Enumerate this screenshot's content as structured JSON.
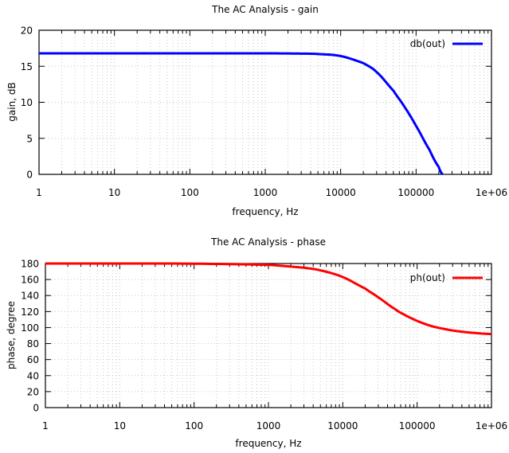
{
  "chart_data": [
    {
      "type": "line",
      "title": "The AC Analysis - gain",
      "xlabel": "frequency, Hz",
      "ylabel": "gain, dB",
      "xscale": "log",
      "xlim": [
        1,
        1000000
      ],
      "ylim": [
        0,
        20
      ],
      "xticks": [
        "1",
        "10",
        "100",
        "1000",
        "10000",
        "100000",
        "1e+06"
      ],
      "yticks": [
        "0",
        "5",
        "10",
        "15",
        "20"
      ],
      "ytick_values": [
        0,
        5,
        10,
        15,
        20
      ],
      "grid": true,
      "legend_position": "top-right",
      "series": [
        {
          "name": "db(out)",
          "color": "#0000ff",
          "x": [
            1,
            10,
            100,
            1000,
            3000,
            5000,
            10000,
            20000,
            30000,
            50000,
            70000,
            100000,
            150000,
            200000,
            225000
          ],
          "y": [
            16.8,
            16.8,
            16.8,
            16.8,
            16.76,
            16.7,
            16.42,
            15.44,
            14.19,
            11.62,
            9.4,
            6.72,
            3.44,
            1.03,
            0
          ]
        }
      ]
    },
    {
      "type": "line",
      "title": "The AC Analysis - phase",
      "xlabel": "frequency, Hz",
      "ylabel": "phase, degree",
      "xscale": "log",
      "xlim": [
        1,
        1000000
      ],
      "ylim": [
        0,
        180
      ],
      "xticks": [
        "1",
        "10",
        "100",
        "1000",
        "10000",
        "100000",
        "1e+06"
      ],
      "yticks": [
        "0",
        "20",
        "40",
        "60",
        "80",
        "100",
        "120",
        "140",
        "160",
        "180"
      ],
      "ytick_values": [
        0,
        20,
        40,
        60,
        80,
        100,
        120,
        140,
        160,
        180
      ],
      "grid": true,
      "legend_position": "top-right",
      "series": [
        {
          "name": "ph(out)",
          "color": "#ff0000",
          "x": [
            1,
            10,
            100,
            1000,
            3000,
            5000,
            10000,
            20000,
            30000,
            50000,
            70000,
            100000,
            150000,
            200000,
            300000,
            500000,
            1000000
          ],
          "y": [
            180,
            180,
            179.8,
            178.3,
            174.8,
            171.4,
            163.1,
            148.8,
            137.7,
            123.4,
            115.2,
            108.3,
            102.4,
            99.4,
            96.3,
            93.8,
            91.9
          ]
        }
      ]
    }
  ]
}
